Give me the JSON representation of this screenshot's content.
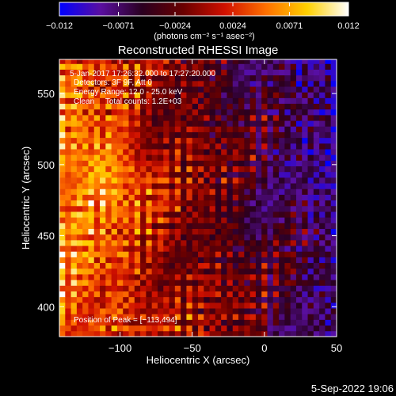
{
  "chart_data": {
    "type": "heatmap",
    "title": "Reconstructed RHESSI Image",
    "xlabel": "Heliocentric X (arcsec)",
    "ylabel": "Heliocentric Y (arcsec)",
    "xlim": [
      -142,
      50
    ],
    "ylim": [
      379,
      574
    ],
    "x_ticks": [
      -100,
      -50,
      0,
      50
    ],
    "x_tick_labels": [
      "−100",
      "−50",
      "0",
      "50"
    ],
    "y_ticks": [
      400,
      450,
      500,
      550
    ],
    "y_tick_labels": [
      "400",
      "450",
      "500",
      "550"
    ],
    "grid": false,
    "pixel_size_arcsec": 4,
    "peak_position": [
      -113,
      494
    ],
    "colorbar": {
      "range": [
        -0.012,
        0.012
      ],
      "tick_values": [
        -0.012,
        -0.0071,
        -0.0024,
        0.0024,
        0.0071,
        0.012
      ],
      "tick_labels": [
        "−0.012",
        "−0.0071",
        "−0.0024",
        "0.0024",
        "0.0071",
        "0.012"
      ],
      "unit_label": "(photons cm⁻² s⁻¹ asec⁻²)",
      "colors": [
        "#0000ff",
        "#5a0fa0",
        "#2a0020",
        "#6a0000",
        "#d01000",
        "#ff7000",
        "#ffd000",
        "#ffffff"
      ]
    },
    "annotations": {
      "time_range": "5-Jan-2017 17:26:32.000 to 17:27:20.000",
      "detectors": "Detectors: 3F 9F, Att 0",
      "energy_range": "Energy Range: 12.0 - 25.0 keV",
      "method": "Clean     Total counts: 1.2E+03",
      "peak": "Position of Peak = [−113,494]"
    }
  },
  "footer": {
    "timestamp": "5-Sep-2022 19:06"
  }
}
